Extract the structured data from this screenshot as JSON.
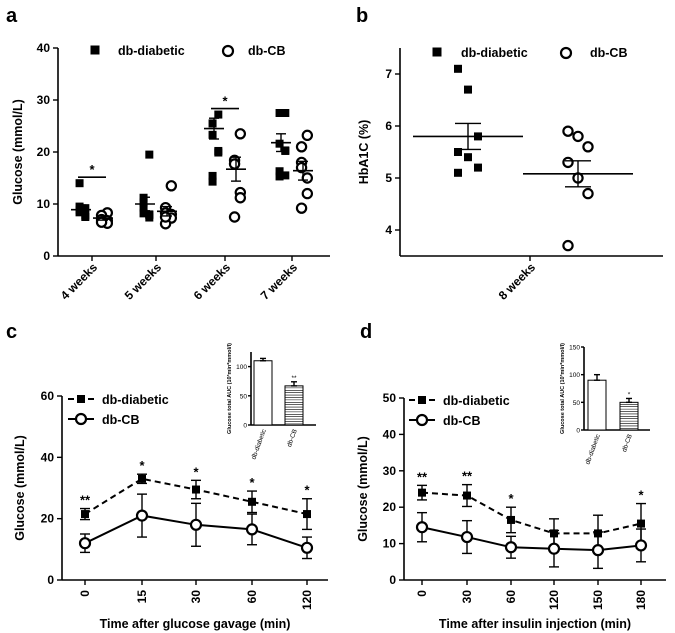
{
  "panels": {
    "a": "a",
    "b": "b",
    "c": "c",
    "d": "d"
  },
  "legend": {
    "diabetic": "db-diabetic",
    "cb": "db-CB"
  },
  "chart_data": [
    {
      "id": "a",
      "type": "scatter",
      "ylabel": "Glucose (mmol/L)",
      "ylim": [
        0,
        40
      ],
      "yticks": [
        "0",
        "10",
        "20",
        "30",
        "40"
      ],
      "categories": [
        "4 weeks",
        "5 weeks",
        "6 weeks",
        "7 weeks"
      ],
      "series": [
        {
          "name": "db-diabetic",
          "marker": "filled-square",
          "points": [
            [
              9.2,
              9.5,
              8.4,
              7.5,
              7.8,
              8.8,
              14.0
            ],
            [
              19.5,
              11.2,
              8.2,
              7.9,
              8.0,
              9.3,
              10.3,
              7.4
            ],
            [
              27.2,
              25.5,
              23.3,
              20.2,
              19.9,
              15.4,
              14.3
            ],
            [
              27.5,
              27.5,
              21.6,
              20.3,
              20.2,
              15.3,
              16.3,
              15.5
            ]
          ],
          "mean": [
            8.9,
            10.0,
            24.5,
            21.8
          ],
          "sem": [
            0.9,
            1.3,
            2.0,
            1.7
          ]
        },
        {
          "name": "db-CB",
          "marker": "open-circle",
          "points": [
            [
              8.3,
              7.8,
              7.0,
              6.8,
              6.3,
              6.5
            ],
            [
              13.5,
              9.3,
              8.3,
              8.0,
              7.3,
              6.2,
              7.5
            ],
            [
              23.5,
              18.4,
              17.7,
              12.2,
              11.2,
              7.5
            ],
            [
              23.2,
              21.0,
              18.0,
              15.0,
              12.0,
              9.2,
              17.0
            ]
          ],
          "mean": [
            7.3,
            8.6,
            16.7,
            16.4
          ],
          "sem": [
            0.4,
            0.9,
            2.3,
            1.8
          ]
        }
      ],
      "annotations": [
        {
          "label": "*",
          "category": "4 weeks"
        },
        {
          "label": "*",
          "category": "6 weeks"
        }
      ]
    },
    {
      "id": "b",
      "type": "scatter",
      "ylabel": "HbA1C (%)",
      "ylim": [
        3.5,
        7.5
      ],
      "yticks": [
        "4",
        "5",
        "6",
        "7"
      ],
      "categories": [
        "8 weeks"
      ],
      "series": [
        {
          "name": "db-diabetic",
          "marker": "filled-square",
          "points": [
            7.1,
            6.7,
            5.8,
            5.5,
            5.4,
            5.2,
            5.1
          ],
          "mean": 5.8,
          "sem": 0.25
        },
        {
          "name": "db-CB",
          "marker": "open-circle",
          "points": [
            5.9,
            5.8,
            5.6,
            5.3,
            5.0,
            4.7,
            3.7
          ],
          "mean": 5.08,
          "sem": 0.25
        }
      ]
    },
    {
      "id": "c",
      "type": "line",
      "xlabel": "Time after glucose gavage (min)",
      "ylabel": "Glucose (mmol/L)",
      "ylim": [
        0,
        60
      ],
      "yticks": [
        "0",
        "20",
        "40",
        "60"
      ],
      "x": [
        "0",
        "15",
        "30",
        "60",
        "120"
      ],
      "series": [
        {
          "name": "db-diabetic",
          "line": "dashed",
          "marker": "filled-square",
          "values": [
            21.5,
            33.0,
            29.5,
            25.5,
            21.5
          ],
          "err": [
            1.8,
            1.5,
            3.0,
            3.5,
            5.0
          ]
        },
        {
          "name": "db-CB",
          "line": "solid",
          "marker": "open-circle",
          "values": [
            12.0,
            21.0,
            18.0,
            16.5,
            10.5
          ],
          "err": [
            3.0,
            7.0,
            7.0,
            5.0,
            3.5
          ]
        }
      ],
      "annotations": [
        {
          "label": "**",
          "x": "0"
        },
        {
          "label": "*",
          "x": "15"
        },
        {
          "label": "*",
          "x": "30"
        },
        {
          "label": "*",
          "x": "60"
        },
        {
          "label": "*",
          "x": "120"
        }
      ],
      "inset": {
        "type": "bar",
        "ylabel": "Glucose total AUC (10³min*mmol/l)",
        "ylim": [
          0,
          125
        ],
        "yticks": [
          "0",
          "50",
          "100"
        ],
        "categories": [
          "db-diabetic",
          "db-CB"
        ],
        "values": [
          110,
          67
        ],
        "err": [
          4,
          7
        ],
        "annotations": [
          "",
          "**"
        ]
      }
    },
    {
      "id": "d",
      "type": "line",
      "xlabel": "Time after  insulin injection (min)",
      "ylabel": "Glucose (mmol/L)",
      "ylim": [
        0,
        50
      ],
      "yticks": [
        "0",
        "10",
        "20",
        "30",
        "40",
        "50"
      ],
      "x": [
        "0",
        "30",
        "60",
        "120",
        "150",
        "180"
      ],
      "series": [
        {
          "name": "db-diabetic",
          "line": "dashed",
          "marker": "filled-square",
          "values": [
            24.0,
            23.2,
            16.5,
            12.8,
            12.8,
            15.5
          ],
          "err": [
            2.0,
            3.0,
            3.5,
            4.0,
            5.0,
            5.5
          ]
        },
        {
          "name": "db-CB",
          "line": "solid",
          "marker": "open-circle",
          "values": [
            14.5,
            11.8,
            9.0,
            8.6,
            8.2,
            9.5
          ],
          "err": [
            4.0,
            4.5,
            3.0,
            5.0,
            5.0,
            4.5
          ]
        }
      ],
      "annotations": [
        {
          "label": "**",
          "x": "0"
        },
        {
          "label": "**",
          "x": "30"
        },
        {
          "label": "*",
          "x": "60"
        },
        {
          "label": "*",
          "x": "180"
        }
      ],
      "inset": {
        "type": "bar",
        "ylabel": "Glucose total AUC (10³min*mmol/l)",
        "ylim": [
          0,
          150
        ],
        "yticks": [
          "0",
          "50",
          "100",
          "150"
        ],
        "categories": [
          "db-diabetic",
          "db-CB"
        ],
        "values": [
          90,
          50
        ],
        "err": [
          10,
          7
        ],
        "annotations": [
          "",
          "*"
        ]
      }
    }
  ]
}
